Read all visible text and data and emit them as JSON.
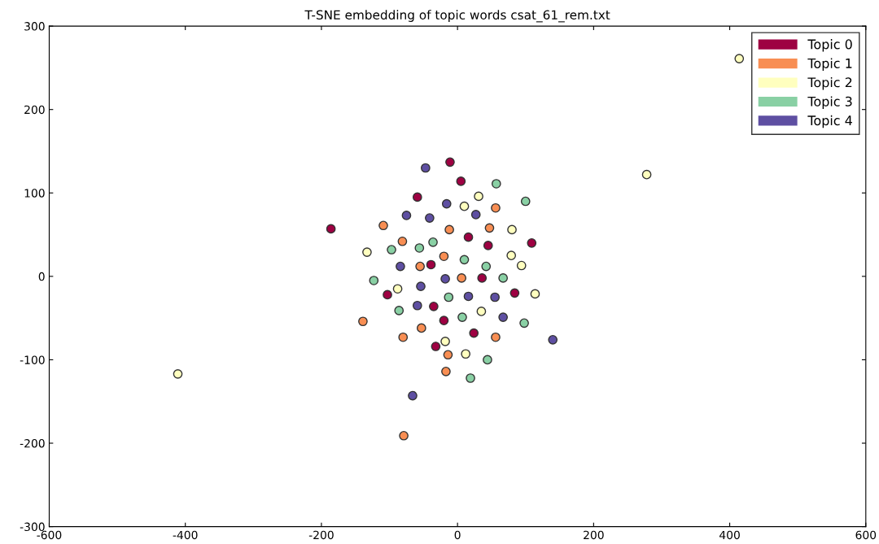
{
  "chart_data": {
    "type": "scatter",
    "title": "T-SNE embedding of topic words csat_61_rem.txt",
    "xlim": [
      -600,
      600
    ],
    "xticks": [
      -600,
      -400,
      -200,
      0,
      200,
      400,
      600
    ],
    "ylim": [
      -300,
      300
    ],
    "yticks": [
      -300,
      -200,
      -100,
      0,
      100,
      200,
      300
    ],
    "grid": false,
    "legend": "top right",
    "marker": "circle",
    "series": [
      {
        "name": "Topic 0",
        "color": "#9e0142",
        "x": [
          -11,
          5,
          -59,
          -186,
          16,
          45,
          109,
          -39,
          36,
          -103,
          84,
          -35,
          -20,
          24,
          -32
        ],
        "values": [
          137,
          114,
          95,
          57,
          47,
          37,
          40,
          14,
          -2,
          -22,
          -20,
          -36,
          -53,
          -68,
          -84
        ]
      },
      {
        "name": "Topic 1",
        "color": "#f88e53",
        "x": [
          -109,
          -81,
          -12,
          56,
          47,
          -20,
          -55,
          6,
          -139,
          -80,
          -53,
          56,
          -14,
          -17,
          -79
        ],
        "values": [
          61,
          42,
          56,
          82,
          58,
          24,
          12,
          -2,
          -54,
          -73,
          -62,
          -73,
          -94,
          -114,
          -191
        ]
      },
      {
        "name": "Topic 2",
        "color": "#ffffbf",
        "x": [
          414,
          278,
          31,
          10,
          80,
          -133,
          79,
          94,
          -88,
          114,
          35,
          -18,
          12,
          -411
        ],
        "values": [
          261,
          122,
          96,
          84,
          56,
          29,
          25,
          13,
          -15,
          -21,
          -42,
          -78,
          -93,
          -117
        ]
      },
      {
        "name": "Topic 3",
        "color": "#89d0a4",
        "x": [
          57,
          100,
          -36,
          -56,
          -97,
          10,
          42,
          -123,
          67,
          -13,
          -86,
          7,
          98,
          44,
          19
        ],
        "values": [
          111,
          90,
          41,
          34,
          32,
          20,
          12,
          -5,
          -2,
          -25,
          -41,
          -49,
          -56,
          -100,
          -122
        ]
      },
      {
        "name": "Topic 4",
        "color": "#5e4fa2",
        "x": [
          -47,
          -16,
          -75,
          -41,
          27,
          -84,
          -54,
          -18,
          16,
          55,
          -59,
          67,
          140,
          -66
        ],
        "values": [
          130,
          87,
          73,
          70,
          74,
          12,
          -12,
          -3,
          -24,
          -25,
          -35,
          -49,
          -76,
          -143
        ]
      }
    ]
  }
}
